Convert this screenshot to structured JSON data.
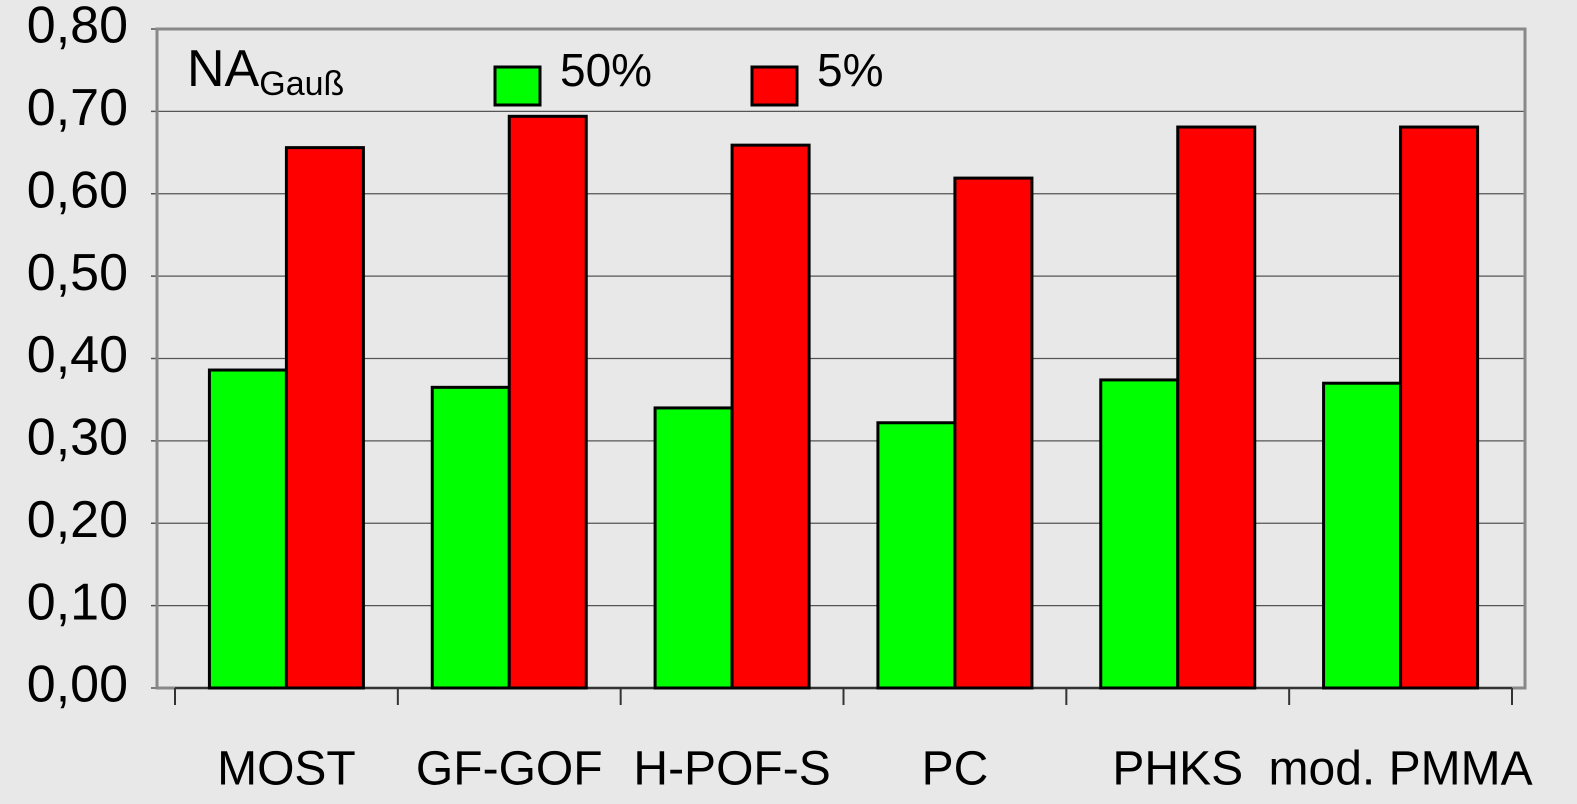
{
  "chart_data": {
    "type": "bar",
    "title": "NA",
    "title_sub": "Gauß",
    "categories": [
      "MOST",
      "GF-GOF",
      "H-POF-S",
      "PC",
      "PHKS",
      "mod. PMMA"
    ],
    "series": [
      {
        "name": "50%",
        "color": "#00ff00",
        "values": [
          0.386,
          0.365,
          0.34,
          0.322,
          0.374,
          0.37
        ]
      },
      {
        "name": "5%",
        "color": "#ff0000",
        "values": [
          0.656,
          0.694,
          0.659,
          0.619,
          0.681,
          0.681
        ]
      }
    ],
    "ylim": [
      0,
      0.8
    ],
    "yticks": [
      {
        "value": 0,
        "label": "0,00"
      },
      {
        "value": 0.1,
        "label": "0,10"
      },
      {
        "value": 0.2,
        "label": "0,20"
      },
      {
        "value": 0.3,
        "label": "0,30"
      },
      {
        "value": 0.4,
        "label": "0,40"
      },
      {
        "value": 0.5,
        "label": "0,50"
      },
      {
        "value": 0.6,
        "label": "0,60"
      },
      {
        "value": 0.7,
        "label": "0,70"
      },
      {
        "value": 0.8,
        "label": "0,80"
      }
    ],
    "grid": true
  }
}
